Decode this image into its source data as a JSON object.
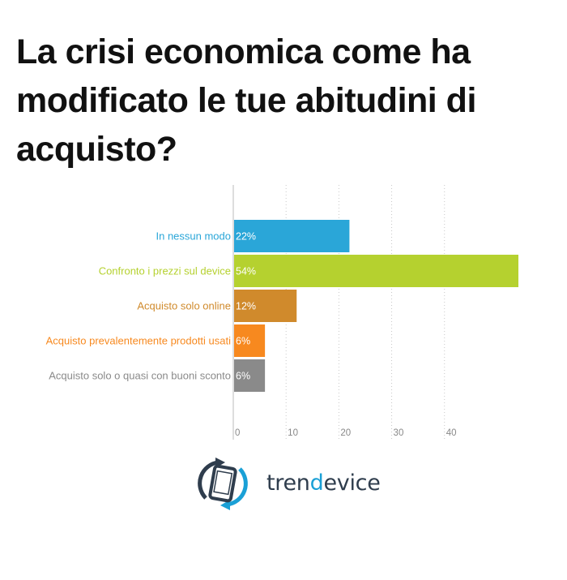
{
  "title": "La crisi economica come ha modificato le tue abitudini di acquisto?",
  "chart_data": {
    "type": "bar",
    "orientation": "horizontal",
    "categories": [
      "In nessun modo",
      "Confronto i prezzi sul device",
      "Acquisto solo online",
      "Acquisto prevalentemente prodotti usati",
      "Acquisto solo o quasi con buoni sconto"
    ],
    "values": [
      22,
      54,
      12,
      6,
      6
    ],
    "value_labels": [
      "22%",
      "54%",
      "12%",
      "6%",
      "6%"
    ],
    "colors": [
      "#2aa6d8",
      "#b5d12f",
      "#d08a2c",
      "#f7891f",
      "#8a8a8a"
    ],
    "xticks": [
      0,
      10,
      20,
      30,
      40
    ],
    "xlim": [
      0,
      54
    ],
    "grid": true
  },
  "brand": {
    "prefix": "tren",
    "accent": "d",
    "suffix": "evice",
    "accent_color": "#1aa0d6",
    "logo_icon": "refresh-phone-icon"
  }
}
